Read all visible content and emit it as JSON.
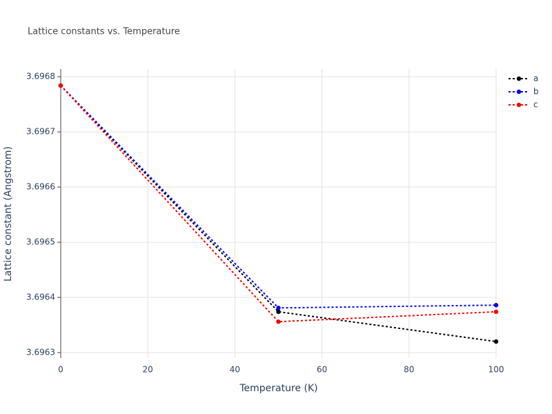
{
  "chart_data": {
    "type": "line",
    "title": "Lattice constants vs. Temperature",
    "x_label": "Temperature (K)",
    "y_label": "Lattice constant (Angstrom)",
    "x": [
      0,
      50,
      100
    ],
    "series": [
      {
        "name": "a",
        "color": "#000000",
        "values": [
          3.696784,
          3.696374,
          3.69632
        ]
      },
      {
        "name": "b",
        "color": "#0000ff",
        "values": [
          3.696784,
          3.696381,
          3.696386
        ]
      },
      {
        "name": "c",
        "color": "#ff0000",
        "values": [
          3.696784,
          3.696356,
          3.696374
        ]
      }
    ],
    "xlim": [
      0,
      100
    ],
    "xticks": [
      0,
      20,
      40,
      60,
      80,
      100
    ],
    "ylim": [
      3.69629,
      3.696814
    ],
    "yticks": [
      3.6963,
      3.6964,
      3.6965,
      3.6966,
      3.6967,
      3.6968
    ],
    "grid": true,
    "line_style": "dotted",
    "legend": "top-right"
  }
}
